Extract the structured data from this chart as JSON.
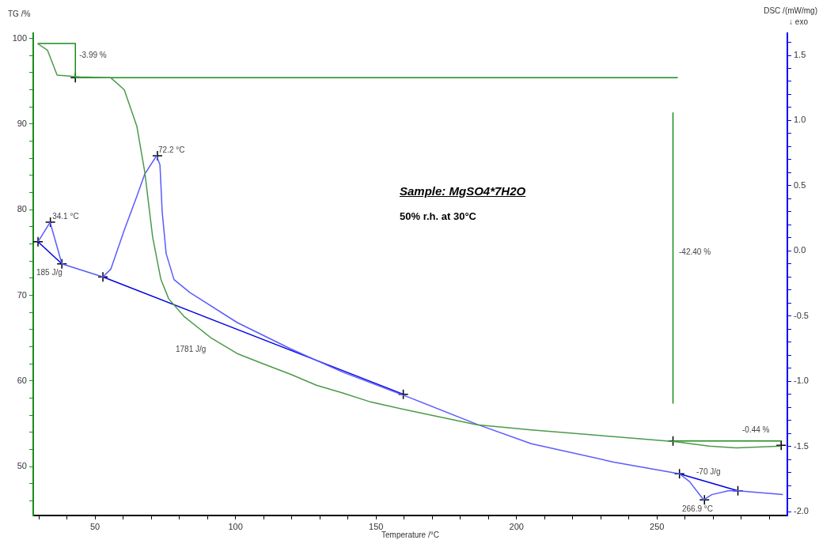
{
  "chart_data": {
    "type": "line",
    "xlabel": "Temperature /°C",
    "ylabel": "TG /%",
    "y2label": "DSC /(mW/mg)\n↓ exo",
    "xlim": [
      28,
      296.4
    ],
    "ylim": [
      44.3,
      100.6
    ],
    "y2lim": [
      -2.03,
      1.67
    ],
    "xticks": [
      {
        "value": 30,
        "label": null
      },
      {
        "value": 40,
        "label": null
      },
      50,
      {
        "value": 60,
        "label": null
      },
      {
        "value": 70,
        "label": null
      },
      {
        "value": 80,
        "label": null
      },
      {
        "value": 90,
        "label": null
      },
      100,
      {
        "value": 110,
        "label": null
      },
      {
        "value": 120,
        "label": null
      },
      {
        "value": 130,
        "label": null
      },
      {
        "value": 140,
        "label": null
      },
      150,
      {
        "value": 160,
        "label": null
      },
      {
        "value": 170,
        "label": null
      },
      {
        "value": 180,
        "label": null
      },
      {
        "value": 190,
        "label": null
      },
      200,
      {
        "value": 210,
        "label": null
      },
      {
        "value": 220,
        "label": null
      },
      {
        "value": 230,
        "label": null
      },
      {
        "value": 240,
        "label": null
      },
      250,
      {
        "value": 260,
        "label": null
      },
      {
        "value": 270,
        "label": null
      },
      {
        "value": 280,
        "label": null
      },
      {
        "value": 290,
        "label": null
      }
    ],
    "yticks": [
      {
        "value": 46,
        "label": null
      },
      {
        "value": 48,
        "label": null
      },
      50,
      {
        "value": 52,
        "label": null
      },
      {
        "value": 54,
        "label": null
      },
      {
        "value": 56,
        "label": null
      },
      {
        "value": 58,
        "label": null
      },
      60,
      {
        "value": 62,
        "label": null
      },
      {
        "value": 64,
        "label": null
      },
      {
        "value": 66,
        "label": null
      },
      {
        "value": 68,
        "label": null
      },
      70,
      {
        "value": 72,
        "label": null
      },
      {
        "value": 74,
        "label": null
      },
      {
        "value": 76,
        "label": null
      },
      {
        "value": 78,
        "label": null
      },
      80,
      {
        "value": 82,
        "label": null
      },
      {
        "value": 84,
        "label": null
      },
      {
        "value": 86,
        "label": null
      },
      {
        "value": 88,
        "label": null
      },
      90,
      {
        "value": 92,
        "label": null
      },
      {
        "value": 94,
        "label": null
      },
      {
        "value": 96,
        "label": null
      },
      {
        "value": 98,
        "label": null
      },
      100
    ],
    "y2ticks": [
      {
        "value": -2,
        "label": "-2.0"
      },
      {
        "value": -1.9,
        "label": null
      },
      {
        "value": -1.8,
        "label": null
      },
      {
        "value": -1.7,
        "label": null
      },
      {
        "value": -1.6,
        "label": null
      },
      -1.5,
      {
        "value": -1.4,
        "label": null
      },
      {
        "value": -1.3,
        "label": null
      },
      {
        "value": -1.2,
        "label": null
      },
      {
        "value": -1.1,
        "label": null
      },
      {
        "value": -1,
        "label": "-1.0"
      },
      {
        "value": -0.9,
        "label": null
      },
      {
        "value": -0.8,
        "label": null
      },
      {
        "value": -0.7,
        "label": null
      },
      {
        "value": -0.6,
        "label": null
      },
      -0.5,
      {
        "value": -0.4,
        "label": null
      },
      {
        "value": -0.3,
        "label": null
      },
      {
        "value": -0.2,
        "label": null
      },
      {
        "value": -0.1,
        "label": null
      },
      {
        "value": 0,
        "label": "0.0"
      },
      {
        "value": 0.1,
        "label": null
      },
      {
        "value": 0.2,
        "label": null
      },
      {
        "value": 0.3,
        "label": null
      },
      {
        "value": 0.4,
        "label": null
      },
      0.5,
      {
        "value": 0.6,
        "label": null
      },
      {
        "value": 0.7,
        "label": null
      },
      {
        "value": 0.8,
        "label": null
      },
      {
        "value": 0.9,
        "label": null
      },
      {
        "value": 1,
        "label": "1.0"
      },
      {
        "value": 1.1,
        "label": null
      },
      {
        "value": 1.2,
        "label": null
      },
      {
        "value": 1.3,
        "label": null
      },
      {
        "value": 1.4,
        "label": null
      },
      1.5,
      {
        "value": 1.6,
        "label": null
      }
    ],
    "grid": false,
    "legend": false,
    "series": [
      {
        "type": "line",
        "color": "#4a9a4a",
        "marker": "none",
        "x": [
          29.5,
          33.1,
          36.5,
          44.4,
          55.6,
          60.4,
          64.9,
          67.7,
          70.5,
          73.4,
          76.2,
          81.8,
          91.4,
          100.6,
          109.9,
          119.5,
          128.8,
          138.1,
          147.6,
          162.5,
          185.9,
          205.3,
          234.6,
          256.8,
          268.6,
          278.2,
          294.2
        ],
        "values": [
          99.4,
          98.6,
          95.7,
          95.5,
          95.4,
          94.0,
          89.7,
          84.4,
          76.8,
          71.9,
          69.6,
          67.5,
          65.0,
          63.2,
          62.0,
          60.8,
          59.5,
          58.6,
          57.6,
          56.5,
          54.9,
          54.3,
          53.5,
          52.9,
          52.4,
          52.2,
          52.4
        ]
      },
      {
        "type": "line",
        "axis": "y2",
        "color": "#5a5aff",
        "marker": "none",
        "x": [
          29.7,
          34.0,
          38.2,
          52.8,
          55.6,
          60.4,
          64.9,
          67.7,
          71.9,
          73.1,
          73.9,
          75.3,
          78.1,
          83.8,
          100.6,
          119.5,
          138.1,
          162.5,
          185.9,
          205.3,
          234.6,
          258.0,
          261.6,
          266.6,
          269.5,
          275.4,
          278.8,
          294.8
        ],
        "values": [
          0.07,
          0.22,
          -0.1,
          -0.2,
          -0.14,
          0.16,
          0.42,
          0.59,
          0.73,
          0.66,
          0.3,
          -0.02,
          -0.22,
          -0.32,
          -0.55,
          -0.75,
          -0.93,
          -1.13,
          -1.33,
          -1.48,
          -1.62,
          -1.71,
          -1.77,
          -1.91,
          -1.87,
          -1.84,
          -1.84,
          -1.87
        ]
      },
      {
        "type": "line",
        "axis": "y2",
        "color": "#0000e0",
        "marker": "none",
        "x": [
          29.7,
          38.2
        ],
        "values": [
          0.07,
          -0.1
        ]
      },
      {
        "type": "line",
        "axis": "y2",
        "color": "#0000e0",
        "marker": "none",
        "x": [
          52.8,
          159.7
        ],
        "values": [
          -0.2,
          -1.1
        ]
      },
      {
        "type": "line",
        "axis": "y2",
        "color": "#0000e0",
        "marker": "none",
        "x": [
          258.0,
          278.8
        ],
        "values": [
          -1.71,
          -1.84
        ]
      },
      {
        "type": "line",
        "color": "#1a8c1a",
        "marker": "none",
        "x": [
          29.7,
          43.0,
          43.0,
          257.4
        ],
        "values": [
          99.4,
          99.4,
          95.4,
          95.4
        ]
      },
      {
        "type": "line",
        "color": "#1a8c1a",
        "marker": "none",
        "x": [
          255.7,
          255.7
        ],
        "values": [
          91.3,
          57.4
        ]
      },
      {
        "type": "line",
        "color": "#1a8c1a",
        "marker": "none",
        "x": [
          255.7,
          294.2
        ],
        "values": [
          53.0,
          53.0
        ]
      },
      {
        "type": "scatter",
        "color": "#000000",
        "marker": "cross",
        "x": [
          43.0,
          255.7,
          294.2
        ],
        "values": [
          95.4,
          53.0,
          52.5
        ]
      },
      {
        "type": "scatter",
        "axis": "y2",
        "color": "#000000",
        "marker": "cross",
        "x": [
          29.7,
          34.1,
          38.2,
          52.8,
          72.2,
          159.7,
          258.0,
          266.9,
          278.8
        ],
        "values": [
          0.07,
          0.22,
          -0.1,
          -0.2,
          0.73,
          -1.1,
          -1.71,
          -1.91,
          -1.84
        ]
      }
    ],
    "annotations": [
      "Sample: MgSO4*7H2O",
      "50% r.h. at 30°C",
      {
        "text": "-3.99 %",
        "x": 44.4,
        "y": 98.0
      },
      "-42.40 %",
      "-0.44 %",
      "185 J/g",
      "1781 J/g",
      "-70 J/g",
      "266.9 °C",
      {
        "text": "34.1 °C",
        "x": 34.8,
        "y": 79.2
      },
      {
        "text": "72.2 °C",
        "x": 72.5,
        "y": 86.9
      }
    ]
  }
}
